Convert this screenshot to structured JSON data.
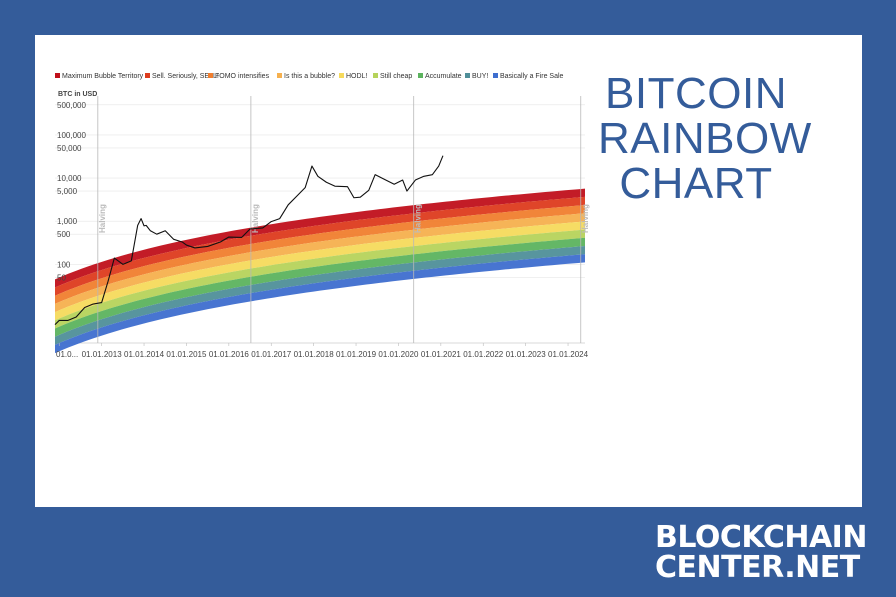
{
  "title_lines": [
    "BITCOIN",
    "RAINBOW",
    "CHART"
  ],
  "brand_lines": [
    "BLOCKCHAIN",
    "CENTER.NET"
  ],
  "chart_data": {
    "type": "area",
    "ylabel": "BTC in USD",
    "y_scale": "log",
    "y_ticks": [
      {
        "label": "500,000",
        "value": 500000
      },
      {
        "label": "100,000",
        "value": 100000
      },
      {
        "label": "50,000",
        "value": 50000
      },
      {
        "label": "10,000",
        "value": 10000
      },
      {
        "label": "5,000",
        "value": 5000
      },
      {
        "label": "1,000",
        "value": 1000
      },
      {
        "label": "500",
        "value": 500
      },
      {
        "label": "100",
        "value": 100
      },
      {
        "label": "50",
        "value": 50
      }
    ],
    "x_ticks": [
      "01.0...",
      "01.01.2013",
      "01.01.2014",
      "01.01.2015",
      "01.01.2016",
      "01.01.2017",
      "01.01.2018",
      "01.01.2019",
      "01.01.2020",
      "01.01.2021",
      "01.01.2022",
      "01.01.2023",
      "01.01.2024"
    ],
    "x_tick_years": [
      2012.0,
      2013.0,
      2014.0,
      2015.0,
      2016.0,
      2017.0,
      2018.0,
      2019.0,
      2020.0,
      2021.0,
      2022.0,
      2023.0,
      2024.0
    ],
    "x_range": [
      2011.9,
      2024.4
    ],
    "bands": [
      {
        "name": "Maximum Bubble Territory",
        "color": "#c0101b"
      },
      {
        "name": "Sell. Seriously, SELL!",
        "color": "#dd3b1d"
      },
      {
        "name": "FOMO intensifies",
        "color": "#f07e2e"
      },
      {
        "name": "Is this a bubble?",
        "color": "#f6b04e"
      },
      {
        "name": "HODL!",
        "color": "#f6da5c"
      },
      {
        "name": "Still cheap",
        "color": "#b6d35b"
      },
      {
        "name": "Accumulate",
        "color": "#5cb35e"
      },
      {
        "name": "BUY!",
        "color": "#4f8f99"
      },
      {
        "name": "Basically a Fire Sale",
        "color": "#3e6ecf"
      }
    ],
    "halvings": [
      {
        "label": "Halving",
        "year": 2012.91
      },
      {
        "label": "Halving",
        "year": 2016.52
      },
      {
        "label": "Halving",
        "year": 2020.36
      },
      {
        "label": "Halving",
        "year": 2024.3
      }
    ],
    "price_series": {
      "years": [
        2011.9,
        2012.0,
        2012.2,
        2012.4,
        2012.6,
        2012.8,
        2013.0,
        2013.15,
        2013.3,
        2013.5,
        2013.7,
        2013.85,
        2013.93,
        2014.0,
        2014.05,
        2014.15,
        2014.3,
        2014.5,
        2014.7,
        2014.9,
        2015.0,
        2015.2,
        2015.5,
        2015.8,
        2016.0,
        2016.3,
        2016.5,
        2016.8,
        2017.0,
        2017.2,
        2017.4,
        2017.6,
        2017.8,
        2017.96,
        2018.1,
        2018.3,
        2018.5,
        2018.8,
        2018.95,
        2019.1,
        2019.3,
        2019.45,
        2019.7,
        2019.9,
        2020.1,
        2020.2,
        2020.4,
        2020.6,
        2020.8,
        2020.95,
        2021.05
      ],
      "values": [
        4,
        5,
        5,
        6,
        10,
        12,
        13,
        40,
        140,
        100,
        120,
        800,
        1150,
        780,
        800,
        600,
        500,
        600,
        380,
        330,
        280,
        240,
        260,
        330,
        430,
        420,
        660,
        700,
        980,
        1150,
        2400,
        3800,
        6000,
        19000,
        11000,
        8000,
        6500,
        6300,
        3500,
        3600,
        5200,
        12000,
        9000,
        7200,
        9000,
        5000,
        9000,
        11000,
        12000,
        19000,
        33000
      ]
    }
  }
}
